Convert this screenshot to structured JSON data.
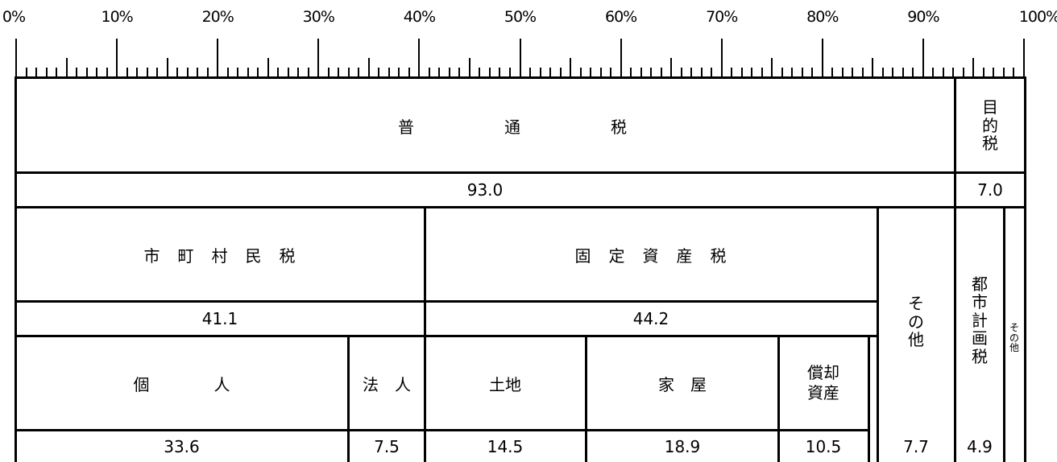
{
  "axis": {
    "ticks": [
      "0%",
      "10%",
      "20%",
      "30%",
      "40%",
      "50%",
      "60%",
      "70%",
      "80%",
      "90%",
      "100%"
    ]
  },
  "chart_data": {
    "type": "table",
    "unit": "%",
    "rows": [
      {
        "level": 1,
        "segments": [
          {
            "label": "普　　　　　通　　　　　税",
            "value": 93.0,
            "value_text": "93.0"
          },
          {
            "label": "目的税",
            "value": 7.0,
            "value_text": "7.0"
          }
        ]
      },
      {
        "level": 2,
        "segments": [
          {
            "label": "市　町　村　民　税",
            "value": 41.1,
            "value_text": "41.1"
          },
          {
            "label": "固　定　資　産　税",
            "value": 44.2,
            "value_text": "44.2"
          },
          {
            "label": "その他",
            "value": 7.7,
            "value_text": "7.7"
          },
          {
            "label": "都市計画税",
            "value": 4.9,
            "value_text": "4.9"
          },
          {
            "label": "その他",
            "value": null,
            "value_text": ""
          }
        ]
      },
      {
        "level": 3,
        "segments": [
          {
            "label": "個　　　　人",
            "value": 33.6,
            "value_text": "33.6"
          },
          {
            "label": "法　人",
            "value": 7.5,
            "value_text": "7.5"
          },
          {
            "label": "土地",
            "value": 14.5,
            "value_text": "14.5"
          },
          {
            "label": "家　屋",
            "value": 18.9,
            "value_text": "18.9"
          },
          {
            "label": "償却\n資産",
            "value": 10.5,
            "value_text": "10.5"
          }
        ]
      }
    ]
  }
}
